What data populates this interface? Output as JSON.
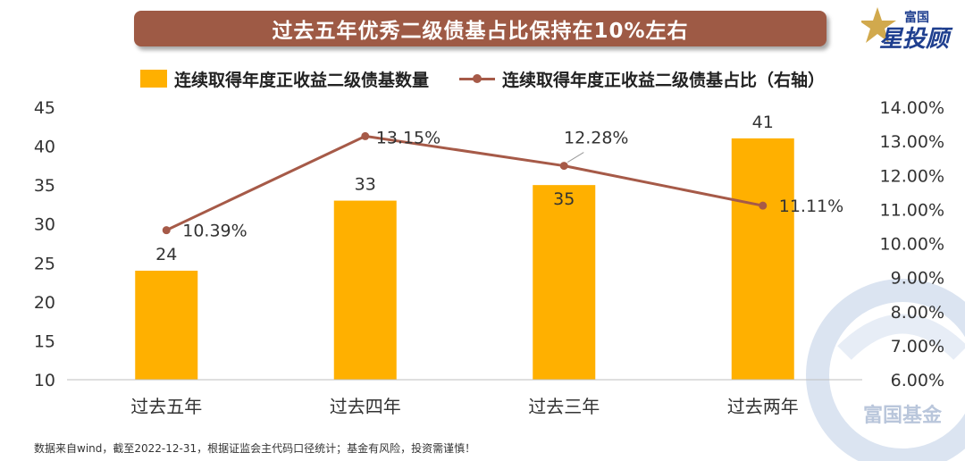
{
  "header": {
    "title": "过去五年优秀二级债基占比保持在10%左右"
  },
  "logo": {
    "line1": "富国",
    "line2": "星投顾",
    "watermark_text": "富国基金"
  },
  "chart_data": {
    "type": "bar",
    "categories": [
      "过去五年",
      "过去四年",
      "过去三年",
      "过去两年"
    ],
    "series": [
      {
        "name": "连续取得年度正收益二级债基数量",
        "type": "bar",
        "axis": "left",
        "values": [
          24,
          33,
          35,
          41
        ],
        "color": "#ffb000"
      },
      {
        "name": "连续取得年度正收益二级债基占比（右轴）",
        "type": "line",
        "axis": "right",
        "values": [
          10.39,
          13.15,
          12.28,
          11.11
        ],
        "color": "#a65a48"
      }
    ],
    "bar_labels": [
      "24",
      "33",
      "35",
      "41"
    ],
    "line_labels": [
      "10.39%",
      "13.15%",
      "12.28%",
      "11.11%"
    ],
    "y_left": {
      "min": 10,
      "max": 45,
      "ticks": [
        "10",
        "15",
        "20",
        "25",
        "30",
        "35",
        "40",
        "45"
      ]
    },
    "y_right": {
      "min": 6,
      "max": 14,
      "ticks": [
        "6.00%",
        "7.00%",
        "8.00%",
        "9.00%",
        "10.00%",
        "11.00%",
        "12.00%",
        "13.00%",
        "14.00%"
      ]
    },
    "grid": false,
    "legend_position": "top"
  },
  "footnote": "数据来自wind，截至2022-12-31，根据证监会主代码口径统计；基金有风险，投资需谨慎！"
}
